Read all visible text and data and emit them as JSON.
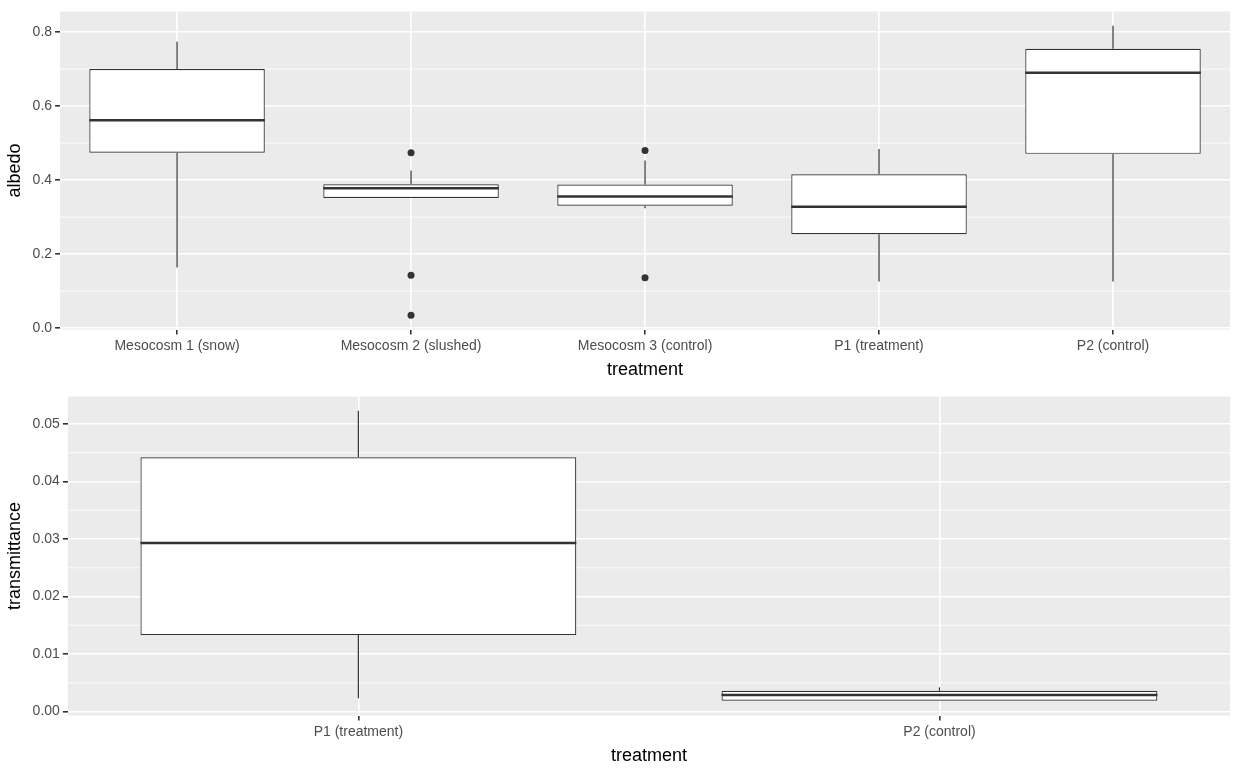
{
  "chart_data": [
    {
      "type": "box",
      "xlabel": "treatment",
      "ylabel": "albedo",
      "categories": [
        "Mesocosm 1 (snow)",
        "Mesocosm 2 (slushed)",
        "Mesocosm 3 (control)",
        "P1 (treatment)",
        "P2 (control)"
      ],
      "boxes": [
        {
          "low": 0.164,
          "q1": 0.474,
          "median": 0.562,
          "q3": 0.7,
          "high": 0.774
        },
        {
          "low": 0.352,
          "q1": 0.352,
          "median": 0.378,
          "q3": 0.389,
          "high": 0.426,
          "outliers": [
            0.474,
            0.143,
            0.035
          ]
        },
        {
          "low": 0.324,
          "q1": 0.331,
          "median": 0.356,
          "q3": 0.388,
          "high": 0.453,
          "outliers": [
            0.48,
            0.136
          ]
        },
        {
          "low": 0.126,
          "q1": 0.254,
          "median": 0.328,
          "q3": 0.416,
          "high": 0.484
        },
        {
          "low": 0.126,
          "q1": 0.471,
          "median": 0.69,
          "q3": 0.755,
          "high": 0.817
        }
      ],
      "ylim": [
        -0.004,
        0.856
      ],
      "yticks": [
        {
          "value": 0,
          "label": "0.0"
        },
        {
          "value": 0.2,
          "label": "0.2"
        },
        {
          "value": 0.4,
          "label": "0.4"
        },
        {
          "value": 0.6,
          "label": "0.6"
        },
        {
          "value": 0.8,
          "label": "0.8"
        }
      ],
      "grid": true
    },
    {
      "type": "box",
      "xlabel": "treatment",
      "ylabel": "transmittance",
      "categories": [
        "P1 (treatment)",
        "P2 (control)"
      ],
      "boxes": [
        {
          "low": 0.0023,
          "q1": 0.0133,
          "median": 0.0293,
          "q3": 0.0442,
          "high": 0.0523
        },
        {
          "low": 0.0019,
          "q1": 0.0019,
          "median": 0.0029,
          "q3": 0.0036,
          "high": 0.0042
        }
      ],
      "ylim": [
        -0.0007,
        0.0548
      ],
      "yticks": [
        {
          "value": 0,
          "label": "0.00"
        },
        {
          "value": 0.01,
          "label": "0.01"
        },
        {
          "value": 0.02,
          "label": "0.02"
        },
        {
          "value": 0.03,
          "label": "0.03"
        },
        {
          "value": 0.04,
          "label": "0.04"
        },
        {
          "value": 0.05,
          "label": "0.05"
        }
      ],
      "grid": true
    }
  ]
}
